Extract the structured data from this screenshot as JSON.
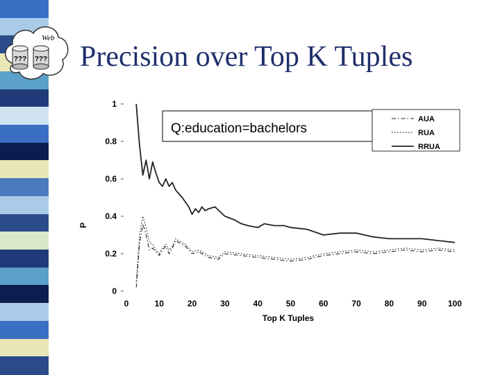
{
  "slide": {
    "title": "Precision over Top K Tuples",
    "stripe_colors": [
      "#3b6fc4",
      "#a9cbe8",
      "#2b4c8a",
      "#e9e6b8",
      "#5aa0c8",
      "#1f3a78",
      "#cfe3f3",
      "#3b6fc4",
      "#0b1e4f",
      "#e9e6b8",
      "#4a7bbf",
      "#a9cbe8",
      "#2b4c8a",
      "#d8e8c8",
      "#1f3a78",
      "#5aa0c8",
      "#0b1e4f",
      "#a9cbe8",
      "#3b6fc4",
      "#e9e6b8",
      "#2b4c8a"
    ]
  },
  "logo": {
    "label": "Web",
    "left_text": "???",
    "right_text": "???",
    "icon": "web-database-cloud-icon"
  },
  "chart_data": {
    "type": "line",
    "title": "",
    "annotation": "Q:education=bachelors",
    "xlabel": "Top K Tuples",
    "ylabel": "P",
    "xlim": [
      0,
      100
    ],
    "ylim": [
      0,
      1
    ],
    "xticks": [
      0,
      10,
      20,
      30,
      40,
      50,
      60,
      70,
      80,
      90,
      100
    ],
    "yticks": [
      0,
      0.2,
      0.4,
      0.6,
      0.8,
      1
    ],
    "legend_position": "top-right",
    "grid": false,
    "series": [
      {
        "name": "AUA",
        "style": "dashdot",
        "x": [
          3,
          4,
          5,
          6,
          7,
          8,
          9,
          10,
          11,
          12,
          13,
          14,
          15,
          18,
          20,
          22,
          25,
          28,
          30,
          35,
          40,
          45,
          50,
          55,
          60,
          65,
          70,
          75,
          80,
          85,
          90,
          95,
          100
        ],
        "y": [
          0.02,
          0.25,
          0.36,
          0.3,
          0.22,
          0.23,
          0.21,
          0.19,
          0.22,
          0.24,
          0.2,
          0.23,
          0.27,
          0.24,
          0.2,
          0.21,
          0.18,
          0.17,
          0.2,
          0.19,
          0.18,
          0.17,
          0.16,
          0.17,
          0.19,
          0.2,
          0.21,
          0.2,
          0.21,
          0.22,
          0.21,
          0.22,
          0.21
        ]
      },
      {
        "name": "RUA",
        "style": "dotted",
        "x": [
          3,
          4,
          5,
          6,
          7,
          8,
          9,
          10,
          11,
          12,
          13,
          14,
          15,
          18,
          20,
          22,
          25,
          28,
          30,
          35,
          40,
          45,
          50,
          55,
          60,
          65,
          70,
          75,
          80,
          85,
          90,
          95,
          100
        ],
        "y": [
          0.05,
          0.3,
          0.4,
          0.34,
          0.26,
          0.25,
          0.22,
          0.2,
          0.23,
          0.25,
          0.22,
          0.24,
          0.28,
          0.25,
          0.21,
          0.22,
          0.19,
          0.18,
          0.21,
          0.2,
          0.19,
          0.18,
          0.17,
          0.18,
          0.2,
          0.21,
          0.22,
          0.21,
          0.22,
          0.23,
          0.22,
          0.23,
          0.22
        ]
      },
      {
        "name": "RRUA",
        "style": "solid",
        "x": [
          3,
          4,
          5,
          6,
          7,
          8,
          9,
          10,
          11,
          12,
          13,
          14,
          15,
          17,
          19,
          20,
          21,
          22,
          23,
          24,
          25,
          27,
          30,
          33,
          35,
          37,
          40,
          42,
          45,
          48,
          50,
          55,
          60,
          65,
          70,
          75,
          80,
          85,
          90,
          95,
          100
        ],
        "y": [
          1.0,
          0.78,
          0.62,
          0.7,
          0.6,
          0.69,
          0.63,
          0.58,
          0.56,
          0.6,
          0.56,
          0.58,
          0.54,
          0.5,
          0.45,
          0.41,
          0.44,
          0.42,
          0.45,
          0.43,
          0.44,
          0.45,
          0.4,
          0.38,
          0.36,
          0.35,
          0.34,
          0.36,
          0.35,
          0.35,
          0.34,
          0.33,
          0.3,
          0.31,
          0.31,
          0.29,
          0.28,
          0.28,
          0.28,
          0.27,
          0.26
        ]
      }
    ]
  }
}
